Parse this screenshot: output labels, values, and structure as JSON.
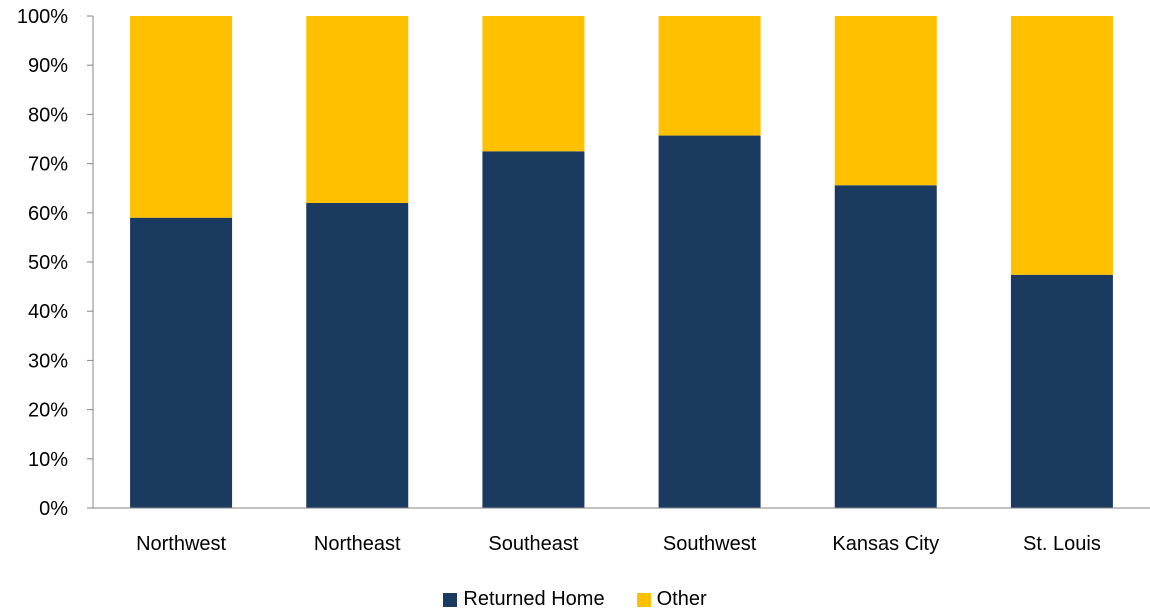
{
  "chart_data": {
    "type": "bar",
    "stacked": true,
    "categories": [
      "Northwest",
      "Northeast",
      "Southeast",
      "Southwest",
      "Kansas City",
      "St. Louis"
    ],
    "series": [
      {
        "name": "Returned Home",
        "color": "#1b3a5f",
        "values": [
          59,
          62,
          72.5,
          75.7,
          65.6,
          47.4
        ]
      },
      {
        "name": "Other",
        "color": "#ffc000",
        "values": [
          41,
          38,
          27.5,
          24.3,
          34.4,
          52.6
        ]
      }
    ],
    "ylim": [
      0,
      100
    ],
    "yticks": [
      "0%",
      "10%",
      "20%",
      "30%",
      "40%",
      "50%",
      "60%",
      "70%",
      "80%",
      "90%",
      "100%"
    ],
    "legend_position": "bottom",
    "grid": false
  }
}
